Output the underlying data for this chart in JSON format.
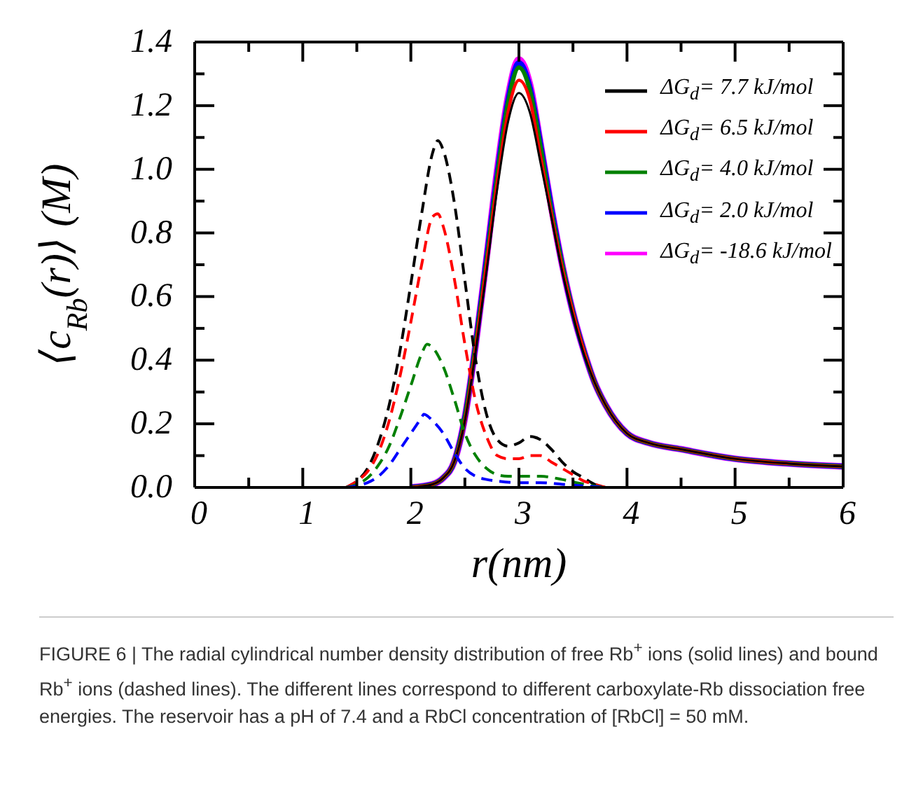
{
  "chart_data": {
    "type": "line",
    "xlabel": "r(nm)",
    "ylabel": "⟨c$_{Rb}$(r)⟩ (M)",
    "xlim": [
      0,
      6
    ],
    "ylim": [
      0,
      1.4
    ],
    "xticks": [
      0,
      {
        "value": 0.5,
        "label": null
      },
      1,
      {
        "value": 1.5,
        "label": null
      },
      2,
      {
        "value": 2.5,
        "label": null
      },
      3,
      {
        "value": 3.5,
        "label": null
      },
      4,
      {
        "value": 4.5,
        "label": null
      },
      5,
      {
        "value": 5.5,
        "label": null
      },
      6
    ],
    "yticks": [
      {
        "value": 0,
        "label": "0.0"
      },
      {
        "value": 0.1,
        "label": null
      },
      0.2,
      {
        "value": 0.3,
        "label": null
      },
      0.4,
      {
        "value": 0.5,
        "label": null
      },
      0.6,
      {
        "value": 0.7,
        "label": null
      },
      0.8,
      {
        "value": 0.9,
        "label": null
      },
      {
        "value": 1,
        "label": "1.0"
      },
      {
        "value": 1.1,
        "label": null
      },
      1.2,
      {
        "value": 1.3,
        "label": null
      },
      1.4
    ],
    "grid": false,
    "legend": "top right",
    "marker": "none",
    "series": [
      {
        "name": "ΔG$_{d}$= 7.7 kJ/mol",
        "color": "#000000",
        "line_style": "solid",
        "x": [
          2.0,
          2.2,
          2.3,
          2.4,
          2.5,
          2.6,
          2.7,
          2.8,
          2.9,
          3.0,
          3.1,
          3.2,
          3.3,
          3.4,
          3.5,
          3.6,
          3.7,
          3.8,
          4.0,
          4.2,
          4.5,
          5.0,
          5.5,
          6.0
        ],
        "values": [
          0,
          0.01,
          0.03,
          0.08,
          0.21,
          0.43,
          0.68,
          0.94,
          1.15,
          1.24,
          1.18,
          1.02,
          0.85,
          0.68,
          0.54,
          0.42,
          0.33,
          0.26,
          0.17,
          0.14,
          0.12,
          0.09,
          0.075,
          0.066
        ]
      },
      {
        "name": "ΔG$_{d}$= 6.5 kJ/mol",
        "color": "#ff0000",
        "line_style": "solid",
        "x": [
          2.0,
          2.2,
          2.3,
          2.4,
          2.5,
          2.6,
          2.7,
          2.8,
          2.9,
          3.0,
          3.1,
          3.2,
          3.3,
          3.4,
          3.5,
          3.6,
          3.7,
          3.8,
          4.0,
          4.2,
          4.5,
          5.0,
          5.5,
          6.0
        ],
        "values": [
          0,
          0.01,
          0.03,
          0.08,
          0.21,
          0.44,
          0.7,
          0.96,
          1.18,
          1.28,
          1.22,
          1.04,
          0.86,
          0.69,
          0.55,
          0.43,
          0.33,
          0.26,
          0.17,
          0.14,
          0.12,
          0.09,
          0.075,
          0.066
        ]
      },
      {
        "name": "ΔG$_{d}$= 4.0 kJ/mol",
        "color": "#008000",
        "line_style": "solid",
        "x": [
          2.0,
          2.2,
          2.3,
          2.4,
          2.5,
          2.6,
          2.7,
          2.8,
          2.9,
          3.0,
          3.1,
          3.2,
          3.3,
          3.4,
          3.5,
          3.6,
          3.7,
          3.8,
          4.0,
          4.2,
          4.5,
          5.0,
          5.5,
          6.0
        ],
        "values": [
          0,
          0.01,
          0.03,
          0.08,
          0.22,
          0.45,
          0.71,
          0.98,
          1.21,
          1.32,
          1.25,
          1.07,
          0.87,
          0.7,
          0.55,
          0.43,
          0.33,
          0.26,
          0.17,
          0.14,
          0.12,
          0.09,
          0.075,
          0.066
        ]
      },
      {
        "name": "ΔG$_{d}$= 2.0 kJ/mol",
        "color": "#0000ff",
        "line_style": "solid",
        "x": [
          2.0,
          2.2,
          2.3,
          2.4,
          2.5,
          2.6,
          2.7,
          2.8,
          2.9,
          3.0,
          3.1,
          3.2,
          3.3,
          3.4,
          3.5,
          3.6,
          3.7,
          3.8,
          4.0,
          4.2,
          4.5,
          5.0,
          5.5,
          6.0
        ],
        "values": [
          0,
          0.01,
          0.03,
          0.08,
          0.22,
          0.45,
          0.72,
          0.99,
          1.22,
          1.335,
          1.26,
          1.08,
          0.88,
          0.7,
          0.55,
          0.43,
          0.33,
          0.26,
          0.17,
          0.14,
          0.12,
          0.09,
          0.075,
          0.066
        ]
      },
      {
        "name": "ΔG$_{d}$= -18.6 kJ/mol",
        "color": "#ff00ff",
        "line_style": "solid",
        "x": [
          2.0,
          2.2,
          2.3,
          2.4,
          2.5,
          2.6,
          2.7,
          2.8,
          2.9,
          3.0,
          3.1,
          3.2,
          3.3,
          3.4,
          3.5,
          3.6,
          3.7,
          3.8,
          4.0,
          4.2,
          4.5,
          5.0,
          5.5,
          6.0
        ],
        "values": [
          0,
          0.01,
          0.03,
          0.08,
          0.22,
          0.45,
          0.72,
          1.0,
          1.23,
          1.345,
          1.27,
          1.08,
          0.88,
          0.7,
          0.55,
          0.43,
          0.33,
          0.26,
          0.17,
          0.14,
          0.12,
          0.09,
          0.075,
          0.066
        ]
      },
      {
        "color": "#000000",
        "line_style": "dashed",
        "x": [
          1.4,
          1.5,
          1.6,
          1.7,
          1.8,
          1.9,
          2.0,
          2.1,
          2.2,
          2.25,
          2.3,
          2.4,
          2.5,
          2.6,
          2.7,
          2.8,
          2.9,
          3.0,
          3.1,
          3.2,
          3.3,
          3.4,
          3.5,
          3.6,
          3.7,
          3.8
        ],
        "values": [
          0,
          0.02,
          0.06,
          0.14,
          0.26,
          0.43,
          0.64,
          0.86,
          1.05,
          1.09,
          1.06,
          0.9,
          0.65,
          0.4,
          0.23,
          0.15,
          0.13,
          0.14,
          0.16,
          0.15,
          0.12,
          0.08,
          0.05,
          0.03,
          0.01,
          0
        ]
      },
      {
        "color": "#ff0000",
        "line_style": "dashed",
        "x": [
          1.4,
          1.5,
          1.6,
          1.7,
          1.8,
          1.9,
          2.0,
          2.1,
          2.2,
          2.25,
          2.3,
          2.4,
          2.5,
          2.6,
          2.7,
          2.8,
          2.9,
          3.0,
          3.1,
          3.2,
          3.3,
          3.4,
          3.5,
          3.6,
          3.7,
          3.8
        ],
        "values": [
          0,
          0.02,
          0.05,
          0.11,
          0.21,
          0.35,
          0.52,
          0.7,
          0.85,
          0.86,
          0.82,
          0.66,
          0.45,
          0.27,
          0.16,
          0.1,
          0.09,
          0.09,
          0.1,
          0.1,
          0.08,
          0.06,
          0.04,
          0.02,
          0.01,
          0
        ]
      },
      {
        "color": "#008000",
        "line_style": "dashed",
        "x": [
          1.4,
          1.5,
          1.6,
          1.7,
          1.8,
          1.9,
          2.0,
          2.1,
          2.15,
          2.2,
          2.3,
          2.4,
          2.5,
          2.6,
          2.7,
          2.8,
          2.9,
          3.0,
          3.2,
          3.4,
          3.6,
          3.8
        ],
        "values": [
          0,
          0.01,
          0.03,
          0.07,
          0.13,
          0.22,
          0.32,
          0.42,
          0.45,
          0.44,
          0.38,
          0.28,
          0.17,
          0.1,
          0.06,
          0.04,
          0.035,
          0.035,
          0.035,
          0.025,
          0.01,
          0
        ]
      },
      {
        "color": "#0000ff",
        "line_style": "dashed",
        "x": [
          1.4,
          1.5,
          1.6,
          1.7,
          1.8,
          1.9,
          2.0,
          2.1,
          2.12,
          2.2,
          2.3,
          2.4,
          2.5,
          2.6,
          2.7,
          2.8,
          3.0,
          3.2,
          3.4,
          3.6,
          3.8
        ],
        "values": [
          0,
          0.005,
          0.015,
          0.035,
          0.07,
          0.12,
          0.17,
          0.22,
          0.23,
          0.21,
          0.17,
          0.11,
          0.06,
          0.035,
          0.025,
          0.02,
          0.015,
          0.015,
          0.01,
          0.005,
          0
        ]
      }
    ],
    "annotations": [
      "FIGURE 6 | The radial cylindrical number density distribution of free Rb$^{+}$ ions (solid lines) and bound Rb$^{+}$ ions (dashed lines). The different lines correspond to different carboxylate-Rb dissociation free energies. The reservoir has a pH of 7.4 and a RbCl concentration of [RbCl] = 50 mM."
    ]
  }
}
